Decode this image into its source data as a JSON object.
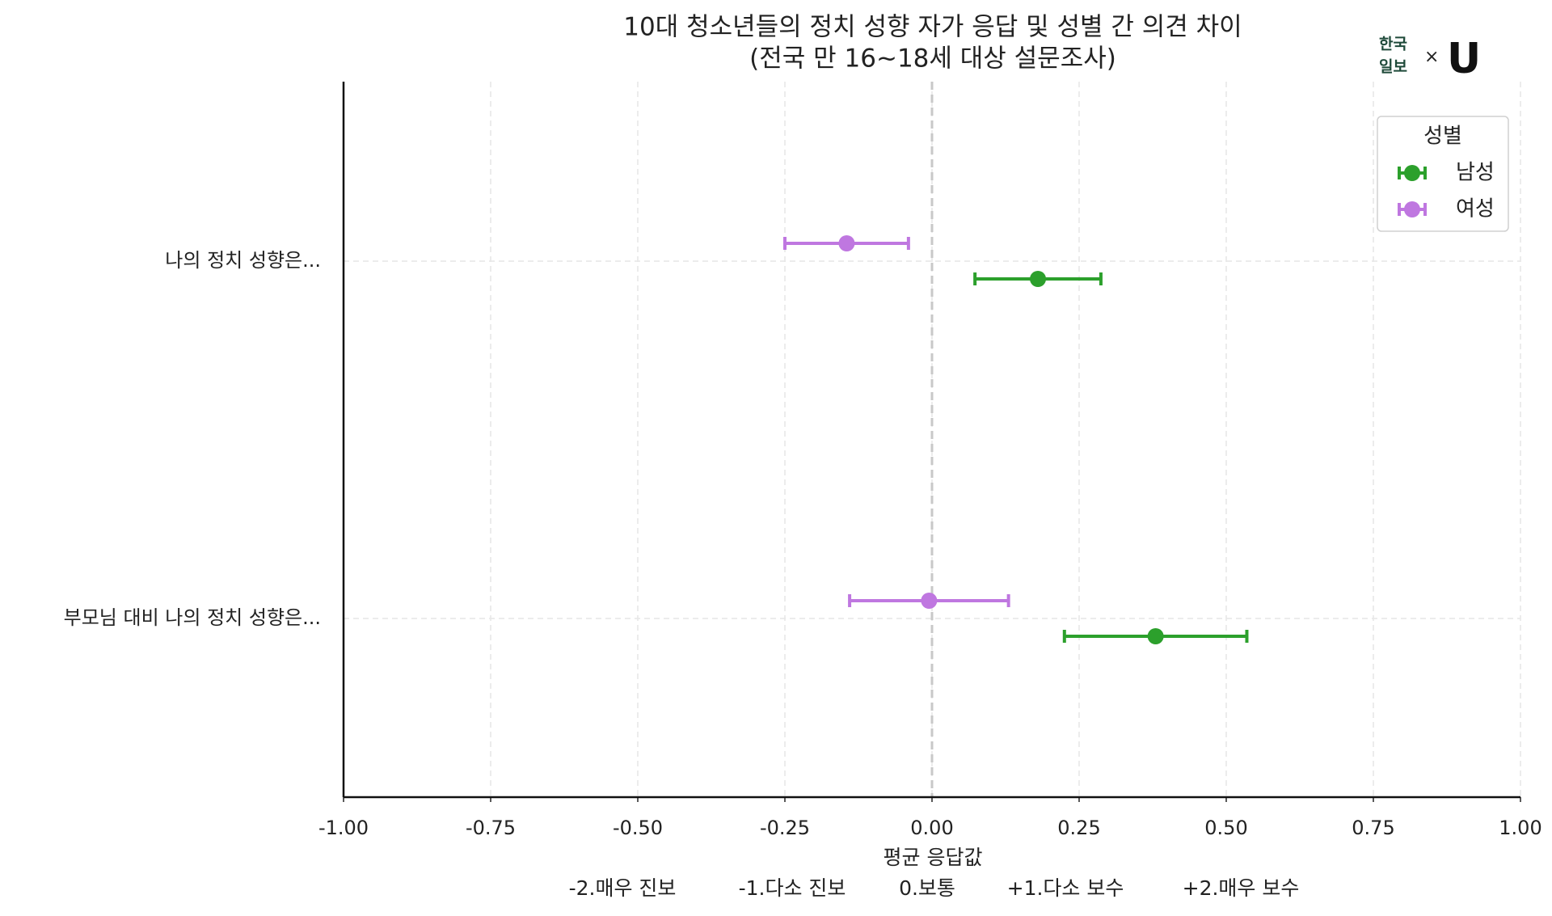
{
  "chart_data": {
    "type": "errorbar",
    "title": "10대 청소년들의 정치 성향 자가 응답 및 성별 간 의견 차이",
    "subtitle": "(전국 만 16~18세 대상 설문조사)",
    "logo": {
      "line1": "한국",
      "line2": "일보",
      "separator": "×",
      "mark": "U"
    },
    "categories": [
      "나의 정치 성향은...",
      "부모님 대비 나의 정치 성향은..."
    ],
    "series": [
      {
        "name": "남성",
        "color": "#2ca02c",
        "values": [
          0.18,
          0.38
        ],
        "errors": [
          0.107,
          0.155
        ]
      },
      {
        "name": "여성",
        "color": "#bf77e0",
        "values": [
          -0.145,
          -0.005
        ],
        "errors": [
          0.105,
          0.135
        ]
      }
    ],
    "xlim": [
      -1,
      1
    ],
    "xticks": [
      {
        "value": -1,
        "label": "-1.00"
      },
      {
        "value": -0.75,
        "label": "-0.75"
      },
      {
        "value": -0.5,
        "label": "-0.50"
      },
      {
        "value": -0.25,
        "label": "-0.25"
      },
      {
        "value": 0,
        "label": "0.00"
      },
      {
        "value": 0.25,
        "label": "0.25"
      },
      {
        "value": 0.5,
        "label": "0.50"
      },
      {
        "value": 0.75,
        "label": "0.75"
      },
      {
        "value": 1,
        "label": "1.00"
      }
    ],
    "reference_x": 0,
    "xlabel": "평균 응답값",
    "scale_labels": [
      "-2.매우 진보",
      "-1.다소 진보",
      "0.보통",
      "+1.다소 보수",
      "+2.매우 보수"
    ],
    "legend_title": "성별",
    "legend_position": "upper right",
    "grid": true
  }
}
